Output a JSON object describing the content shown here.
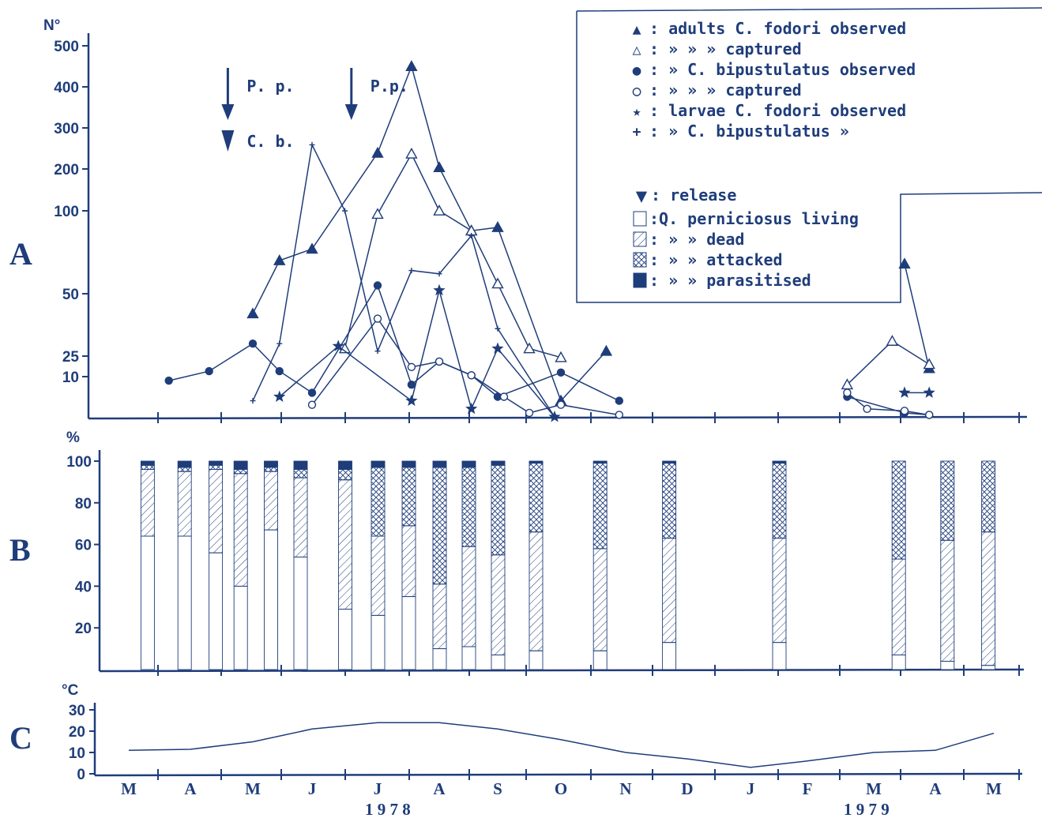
{
  "chart_data": [
    {
      "panel": "A",
      "type": "line",
      "ylabel": "N°",
      "y_ticks": [
        "500",
        "400",
        "300",
        "200",
        "100",
        "50",
        "25",
        "10"
      ],
      "release_markers": [
        {
          "x": 1.6,
          "labels": [
            "P. p.",
            "C. b."
          ]
        },
        {
          "x": 3.6,
          "labels": [
            "P.p."
          ]
        }
      ],
      "series": [
        {
          "key": "cf_adult_obs",
          "marker": "filled-triangle",
          "points": [
            [
              2.0,
              42
            ],
            [
              2.45,
              70
            ],
            [
              3.0,
              77
            ],
            [
              4.0,
              240
            ],
            [
              4.55,
              450
            ],
            [
              5.0,
              205
            ],
            [
              5.55,
              88
            ],
            [
              6.0,
              90
            ],
            [
              7.0,
              4
            ],
            [
              7.7,
              27
            ]
          ]
        },
        {
          "key": "cf_adult_cap",
          "marker": "open-triangle",
          "points": [
            [
              3.5,
              28
            ],
            [
              4.0,
              98
            ],
            [
              4.55,
              238
            ],
            [
              5.0,
              100
            ],
            [
              5.55,
              88
            ],
            [
              6.0,
              56
            ],
            [
              6.5,
              28
            ],
            [
              7.0,
              24
            ]
          ]
        },
        {
          "key": "cb_adult_obs",
          "marker": "filled-circle",
          "points": [
            [
              0.65,
              9
            ],
            [
              1.3,
              14
            ],
            [
              2.0,
              30
            ],
            [
              2.45,
              14
            ],
            [
              3.0,
              6
            ],
            [
              4.0,
              55
            ],
            [
              4.55,
              8
            ],
            [
              5.0,
              21
            ],
            [
              5.55,
              11
            ],
            [
              6.0,
              5
            ],
            [
              7.0,
              13
            ],
            [
              7.9,
              4
            ]
          ]
        },
        {
          "key": "cb_adult_cap",
          "marker": "open-circle",
          "points": [
            [
              3.0,
              3
            ],
            [
              4.0,
              40
            ],
            [
              4.55,
              17
            ],
            [
              5.0,
              21
            ],
            [
              5.55,
              11
            ],
            [
              6.1,
              5
            ],
            [
              6.5,
              1
            ],
            [
              7.0,
              3
            ],
            [
              7.9,
              0.5
            ]
          ]
        },
        {
          "key": "cf_larvae_obs",
          "marker": "star",
          "points": [
            [
              2.45,
              5
            ],
            [
              3.4,
              29
            ],
            [
              4.55,
              4
            ],
            [
              5.0,
              52
            ],
            [
              5.55,
              2
            ],
            [
              6.0,
              28
            ],
            [
              6.9,
              0
            ]
          ]
        },
        {
          "key": "cb_larvae_obs",
          "marker": "plus",
          "points": [
            [
              2.0,
              4
            ],
            [
              2.45,
              30
            ],
            [
              3.0,
              260
            ],
            [
              3.5,
              100
            ],
            [
              4.0,
              27
            ],
            [
              4.55,
              64
            ],
            [
              5.0,
              62
            ],
            [
              5.55,
              85
            ],
            [
              6.0,
              36
            ],
            [
              6.9,
              0
            ]
          ]
        },
        {
          "key": "cf_adult_obs_1979",
          "marker": "filled-triangle",
          "points": [
            [
              12.5,
              68
            ],
            [
              12.9,
              16
            ]
          ]
        },
        {
          "key": "cf_adult_cap_1979",
          "marker": "open-triangle",
          "points": [
            [
              11.6,
              8
            ],
            [
              12.3,
              31
            ],
            [
              12.9,
              19
            ]
          ]
        },
        {
          "key": "cb_adult_obs_1979",
          "marker": "filled-circle",
          "points": [
            [
              11.6,
              5
            ],
            [
              12.5,
              1
            ],
            [
              12.9,
              0.5
            ]
          ]
        },
        {
          "key": "cb_adult_cap_1979",
          "marker": "open-circle",
          "points": [
            [
              11.6,
              6
            ],
            [
              11.9,
              2
            ],
            [
              12.5,
              1.5
            ],
            [
              12.9,
              0.5
            ]
          ]
        },
        {
          "key": "cf_larvae_obs_1979",
          "marker": "star",
          "points": [
            [
              12.5,
              6
            ],
            [
              12.9,
              6
            ]
          ]
        }
      ]
    },
    {
      "panel": "B",
      "type": "bar",
      "stacked": true,
      "ylabel": "%",
      "ylim": [
        0,
        100
      ],
      "y_ticks": [
        "100",
        "80",
        "60",
        "40",
        "20"
      ],
      "stack_order": [
        "living",
        "dead",
        "attacked",
        "parasitised"
      ],
      "bars": [
        {
          "x": 0.3,
          "living": 64,
          "dead": 32,
          "attacked": 2,
          "parasitised": 2
        },
        {
          "x": 0.9,
          "living": 64,
          "dead": 31,
          "attacked": 2,
          "parasitised": 3
        },
        {
          "x": 1.4,
          "living": 56,
          "dead": 40,
          "attacked": 2,
          "parasitised": 2
        },
        {
          "x": 1.8,
          "living": 40,
          "dead": 54,
          "attacked": 2,
          "parasitised": 4
        },
        {
          "x": 2.3,
          "living": 67,
          "dead": 28,
          "attacked": 2,
          "parasitised": 3
        },
        {
          "x": 2.8,
          "living": 54,
          "dead": 38,
          "attacked": 4,
          "parasitised": 4
        },
        {
          "x": 3.5,
          "living": 29,
          "dead": 62,
          "attacked": 5,
          "parasitised": 4
        },
        {
          "x": 4.0,
          "living": 26,
          "dead": 38,
          "attacked": 33,
          "parasitised": 3
        },
        {
          "x": 4.5,
          "living": 35,
          "dead": 34,
          "attacked": 28,
          "parasitised": 3
        },
        {
          "x": 5.0,
          "living": 10,
          "dead": 31,
          "attacked": 56,
          "parasitised": 3
        },
        {
          "x": 5.5,
          "living": 11,
          "dead": 48,
          "attacked": 38,
          "parasitised": 3
        },
        {
          "x": 6.0,
          "living": 7,
          "dead": 48,
          "attacked": 43,
          "parasitised": 2
        },
        {
          "x": 6.6,
          "living": 9,
          "dead": 57,
          "attacked": 33,
          "parasitised": 1
        },
        {
          "x": 7.6,
          "living": 9,
          "dead": 49,
          "attacked": 41,
          "parasitised": 1
        },
        {
          "x": 8.7,
          "living": 13,
          "dead": 50,
          "attacked": 36,
          "parasitised": 1
        },
        {
          "x": 10.5,
          "living": 13,
          "dead": 50,
          "attacked": 36,
          "parasitised": 1
        },
        {
          "x": 12.4,
          "living": 7,
          "dead": 46,
          "attacked": 47,
          "parasitised": 0
        },
        {
          "x": 13.2,
          "living": 4,
          "dead": 58,
          "attacked": 38,
          "parasitised": 0
        },
        {
          "x": 13.9,
          "living": 2,
          "dead": 64,
          "attacked": 34,
          "parasitised": 0
        }
      ]
    },
    {
      "panel": "C",
      "type": "line",
      "ylabel": "°C",
      "ylim": [
        0,
        30
      ],
      "y_ticks": [
        "30",
        "20",
        "10",
        "0"
      ],
      "x": [
        0.0,
        1.0,
        2.0,
        3.0,
        4.0,
        5.0,
        6.0,
        7.0,
        8.0,
        9.0,
        10.0,
        11.0,
        12.0,
        13.0,
        14.0
      ],
      "values": [
        11,
        11.5,
        15,
        21,
        24,
        24,
        21,
        16,
        10,
        7,
        3,
        6,
        10,
        11,
        19
      ]
    }
  ],
  "months": [
    "M",
    "A",
    "M",
    "J",
    "J",
    "A",
    "S",
    "O",
    "N",
    "D",
    "J",
    "F",
    "M",
    "A",
    "M"
  ],
  "years": [
    "1 9 7 8",
    "1 9 7 9"
  ],
  "panel_labels": [
    "A",
    "B",
    "C"
  ],
  "legend": {
    "rows": [
      {
        "sym": "▲",
        "label": ": adults  C. fodori  observed"
      },
      {
        "sym": "△",
        "label": ":    »      »      »   captured"
      },
      {
        "sym": "●",
        "label": ":    »     C. bipustulatus observed"
      },
      {
        "sym": "○",
        "label": ":    »      »      »      captured"
      },
      {
        "sym": "★",
        "label": ": larvae C. fodori observed"
      },
      {
        "sym": "+",
        "label": ":    »      C. bipustulatus  »"
      }
    ],
    "release": {
      "sym": "▼",
      "label": ": release"
    },
    "bar_rows": [
      {
        "label": ":Q. perniciosus living"
      },
      {
        "label": ": »       »        dead"
      },
      {
        "label": ": »       »     attacked"
      },
      {
        "label": ": »       »   parasitised"
      }
    ]
  },
  "colors": {
    "ink": "#1f3d7a",
    "paper": "#ffffff"
  }
}
